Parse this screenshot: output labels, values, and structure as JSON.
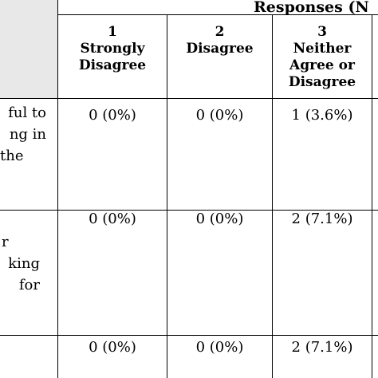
{
  "header": {
    "title": "Responses (N"
  },
  "columns": [
    {
      "number": "1",
      "label_line1": "Strongly",
      "label_line2": "Disagree"
    },
    {
      "number": "2",
      "label_line1": "Disagree",
      "label_line2": ""
    },
    {
      "number": "3",
      "label_line1": "Neither",
      "label_line2": "Agree or",
      "label_line3": "Disagree"
    }
  ],
  "rows": [
    {
      "statement_fragments": [
        "ful to",
        "ng in",
        "the"
      ],
      "values": [
        "0 (0%)",
        "0 (0%)",
        "1 (3.6%)"
      ]
    },
    {
      "statement_fragments": [
        "r",
        "king",
        "for"
      ],
      "values": [
        "0 (0%)",
        "0 (0%)",
        "2 (7.1%)"
      ]
    },
    {
      "statement_fragments": [],
      "values": [
        "0 (0%)",
        "0 (0%)",
        "2 (7.1%)"
      ]
    }
  ]
}
